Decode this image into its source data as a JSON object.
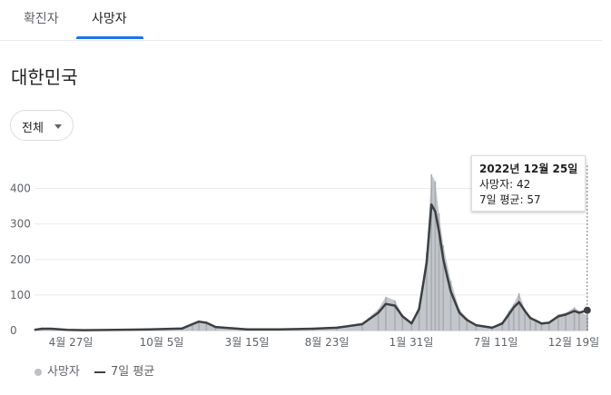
{
  "tabs": [
    {
      "label": "확진자",
      "active": false
    },
    {
      "label": "사망자",
      "active": true
    }
  ],
  "region": "대한민국",
  "filter": {
    "label": "전체"
  },
  "tooltip": {
    "date": "2022년 12월 25일",
    "deaths_label": "사망자: 42",
    "avg_label": "7일 평균: 57"
  },
  "legend": {
    "daily": "사망자",
    "avg": "7일 평균"
  },
  "colors": {
    "bars": "#bdc1c6",
    "avg_line": "#3c4043",
    "accent": "#1a73e8"
  },
  "chart_data": {
    "type": "bar",
    "x_range": [
      "2020-03-01",
      "2022-12-27"
    ],
    "ylim": [
      0,
      450
    ],
    "yticks": [
      0,
      100,
      200,
      300,
      400
    ],
    "xticks": [
      "4월 27일",
      "10월 5일",
      "3월 15일",
      "8월 23일",
      "1월 31일",
      "7월 11일",
      "12월 19일"
    ],
    "grid": true,
    "legend_position": "bottom-left",
    "series": [
      {
        "name": "사망자",
        "kind": "daily",
        "x": [
          "2020-03-01",
          "2020-03-15",
          "2020-04-01",
          "2020-05-01",
          "2020-06-01",
          "2020-08-01",
          "2020-10-01",
          "2020-12-01",
          "2020-12-20",
          "2021-01-01",
          "2021-01-15",
          "2021-02-01",
          "2021-04-01",
          "2021-06-01",
          "2021-08-01",
          "2021-09-15",
          "2021-11-01",
          "2021-12-01",
          "2021-12-15",
          "2022-01-01",
          "2022-01-15",
          "2022-02-01",
          "2022-02-15",
          "2022-03-01",
          "2022-03-10",
          "2022-03-17",
          "2022-03-24",
          "2022-04-01",
          "2022-04-15",
          "2022-05-01",
          "2022-05-15",
          "2022-06-01",
          "2022-07-01",
          "2022-07-20",
          "2022-08-01",
          "2022-08-10",
          "2022-08-20",
          "2022-08-31",
          "2022-09-10",
          "2022-09-20",
          "2022-10-01",
          "2022-10-15",
          "2022-11-01",
          "2022-11-15",
          "2022-12-01",
          "2022-12-10",
          "2022-12-25"
        ],
        "values": [
          3,
          8,
          5,
          2,
          1,
          2,
          3,
          6,
          20,
          28,
          24,
          10,
          3,
          3,
          5,
          8,
          20,
          60,
          95,
          85,
          45,
          25,
          70,
          220,
          440,
          420,
          330,
          240,
          140,
          60,
          35,
          15,
          8,
          25,
          55,
          75,
          105,
          60,
          40,
          30,
          20,
          25,
          45,
          50,
          65,
          55,
          42
        ]
      },
      {
        "name": "7일 평균",
        "kind": "avg",
        "x": [
          "2020-03-01",
          "2020-03-15",
          "2020-04-01",
          "2020-05-01",
          "2020-06-01",
          "2020-08-01",
          "2020-10-01",
          "2020-12-01",
          "2020-12-20",
          "2021-01-01",
          "2021-01-15",
          "2021-02-01",
          "2021-04-01",
          "2021-06-01",
          "2021-08-01",
          "2021-09-15",
          "2021-11-01",
          "2021-12-01",
          "2021-12-15",
          "2022-01-01",
          "2022-01-15",
          "2022-02-01",
          "2022-02-15",
          "2022-03-01",
          "2022-03-10",
          "2022-03-17",
          "2022-03-24",
          "2022-04-01",
          "2022-04-15",
          "2022-05-01",
          "2022-05-15",
          "2022-06-01",
          "2022-07-01",
          "2022-07-20",
          "2022-08-01",
          "2022-08-10",
          "2022-08-20",
          "2022-08-31",
          "2022-09-10",
          "2022-09-20",
          "2022-10-01",
          "2022-10-15",
          "2022-11-01",
          "2022-11-15",
          "2022-12-01",
          "2022-12-10",
          "2022-12-25"
        ],
        "values": [
          2,
          5,
          5,
          2,
          1,
          2,
          3,
          6,
          18,
          25,
          22,
          10,
          3,
          3,
          5,
          8,
          18,
          50,
          75,
          70,
          40,
          20,
          60,
          190,
          355,
          335,
          280,
          200,
          110,
          50,
          30,
          15,
          8,
          20,
          45,
          65,
          80,
          55,
          35,
          28,
          20,
          22,
          40,
          45,
          55,
          50,
          57
        ]
      }
    ]
  }
}
